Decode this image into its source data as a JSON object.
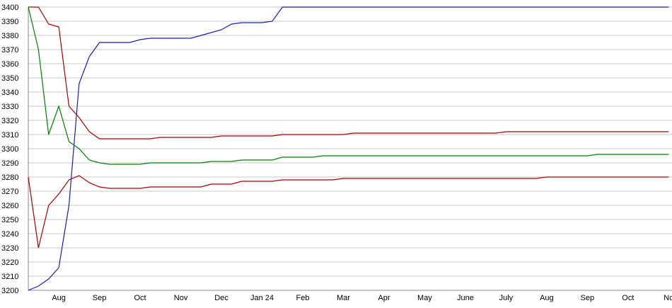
{
  "chart_data": {
    "type": "line",
    "categories": [
      null,
      null,
      null,
      "Aug",
      null,
      null,
      null,
      "Sep",
      null,
      null,
      null,
      "Oct",
      null,
      null,
      null,
      "Nov",
      null,
      null,
      null,
      "Dec",
      null,
      null,
      null,
      "Jan 24",
      null,
      null,
      null,
      "Feb",
      null,
      null,
      null,
      "Mar",
      null,
      null,
      null,
      "Apr",
      null,
      null,
      null,
      "May",
      null,
      null,
      null,
      "June",
      null,
      null,
      null,
      "July",
      null,
      null,
      null,
      "Aug",
      null,
      null,
      null,
      "Sep",
      null,
      null,
      null,
      "Oct",
      null,
      null,
      null,
      "No"
    ],
    "series": [
      {
        "color": "#1c1cb0",
        "values": [
          3200,
          3203,
          3208,
          3216,
          3260,
          3346,
          3365,
          3375,
          3375,
          3375,
          3375,
          3377,
          3378,
          3378,
          3378,
          3378,
          3378,
          3380,
          3382,
          3384,
          3388,
          3389,
          3389,
          3389,
          3390,
          3400,
          3400,
          3400,
          3400,
          3400,
          3400,
          3400,
          3400,
          3400,
          3400,
          3400,
          3400,
          3400,
          3400,
          3400,
          3400,
          3400,
          3400,
          3400,
          3400,
          3400,
          3400,
          3400,
          3400,
          3400,
          3400,
          3400,
          3400,
          3400,
          3400,
          3400,
          3400,
          3400,
          3400,
          3400,
          3400,
          3400,
          3400,
          3400
        ]
      },
      {
        "color": "#a80000",
        "values": [
          3400,
          3400,
          3388,
          3386,
          3330,
          3322,
          3312,
          3307,
          3307,
          3307,
          3307,
          3307,
          3307,
          3308,
          3308,
          3308,
          3308,
          3308,
          3308,
          3309,
          3309,
          3309,
          3309,
          3309,
          3309,
          3310,
          3310,
          3310,
          3310,
          3310,
          3310,
          3310,
          3311,
          3311,
          3311,
          3311,
          3311,
          3311,
          3311,
          3311,
          3311,
          3311,
          3311,
          3311,
          3311,
          3311,
          3311,
          3312,
          3312,
          3312,
          3312,
          3312,
          3312,
          3312,
          3312,
          3312,
          3312,
          3312,
          3312,
          3312,
          3312,
          3312,
          3312,
          3312
        ]
      },
      {
        "color": "#008000",
        "values": [
          3400,
          3370,
          3310,
          3330,
          3305,
          3300,
          3292,
          3290,
          3289,
          3289,
          3289,
          3289,
          3290,
          3290,
          3290,
          3290,
          3290,
          3290,
          3291,
          3291,
          3291,
          3292,
          3292,
          3292,
          3292,
          3294,
          3294,
          3294,
          3294,
          3295,
          3295,
          3295,
          3295,
          3295,
          3295,
          3295,
          3295,
          3295,
          3295,
          3295,
          3295,
          3295,
          3295,
          3295,
          3295,
          3295,
          3295,
          3295,
          3295,
          3295,
          3295,
          3295,
          3295,
          3295,
          3295,
          3295,
          3296,
          3296,
          3296,
          3296,
          3296,
          3296,
          3296,
          3296
        ]
      },
      {
        "color": "#a80000",
        "values": [
          3280,
          3230,
          3260,
          3268,
          3278,
          3281,
          3276,
          3273,
          3272,
          3272,
          3272,
          3272,
          3273,
          3273,
          3273,
          3273,
          3273,
          3273,
          3275,
          3275,
          3275,
          3277,
          3277,
          3277,
          3277,
          3278,
          3278,
          3278,
          3278,
          3278,
          3278,
          3279,
          3279,
          3279,
          3279,
          3279,
          3279,
          3279,
          3279,
          3279,
          3279,
          3279,
          3279,
          3279,
          3279,
          3279,
          3279,
          3279,
          3279,
          3279,
          3279,
          3280,
          3280,
          3280,
          3280,
          3280,
          3280,
          3280,
          3280,
          3280,
          3280,
          3280,
          3280,
          3280
        ]
      }
    ],
    "ylim": [
      3200,
      3400
    ],
    "yticks": [
      3200,
      3210,
      3220,
      3230,
      3240,
      3250,
      3260,
      3270,
      3280,
      3290,
      3300,
      3310,
      3320,
      3330,
      3340,
      3350,
      3360,
      3370,
      3380,
      3390,
      3400
    ],
    "grid": true
  }
}
